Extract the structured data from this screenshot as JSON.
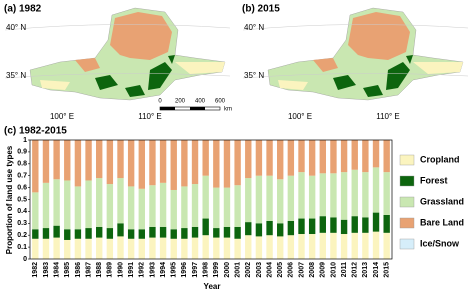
{
  "maps": [
    {
      "title": "(a) 1982",
      "lat_labels": [
        "40° N",
        "35° N"
      ],
      "lon_labels": [
        "100° E",
        "110° E"
      ]
    },
    {
      "title": "(b) 2015",
      "lat_labels": [
        "40° N",
        "35° N"
      ],
      "lon_labels": [
        "100° E",
        "110° E"
      ]
    }
  ],
  "scale_bar": {
    "labels": [
      "0",
      "200",
      "400",
      "600"
    ],
    "unit": "km"
  },
  "chart_data": {
    "type": "stacked_bar",
    "title": "(c) 1982-2015",
    "x_label": "Year",
    "y_label": "Proportion of land use types",
    "categories": [
      "1982",
      "1983",
      "1984",
      "1985",
      "1986",
      "1987",
      "1988",
      "1989",
      "1990",
      "1991",
      "1992",
      "1993",
      "1994",
      "1995",
      "1996",
      "1997",
      "1998",
      "1999",
      "2000",
      "2001",
      "2002",
      "2003",
      "2004",
      "2005",
      "2006",
      "2007",
      "2008",
      "2009",
      "2010",
      "2011",
      "2012",
      "2013",
      "2014",
      "2015"
    ],
    "series": [
      {
        "name": "Cropland",
        "color": "#fbf4bf",
        "values": [
          0.17,
          0.17,
          0.18,
          0.16,
          0.17,
          0.17,
          0.18,
          0.17,
          0.19,
          0.17,
          0.17,
          0.18,
          0.18,
          0.17,
          0.17,
          0.18,
          0.2,
          0.18,
          0.18,
          0.17,
          0.2,
          0.19,
          0.2,
          0.19,
          0.2,
          0.21,
          0.21,
          0.22,
          0.22,
          0.21,
          0.22,
          0.22,
          0.23,
          0.22
        ]
      },
      {
        "name": "Forest",
        "color": "#0d650e",
        "values": [
          0.08,
          0.09,
          0.1,
          0.09,
          0.08,
          0.09,
          0.09,
          0.09,
          0.11,
          0.08,
          0.08,
          0.09,
          0.09,
          0.08,
          0.09,
          0.09,
          0.14,
          0.08,
          0.09,
          0.1,
          0.11,
          0.11,
          0.12,
          0.11,
          0.12,
          0.13,
          0.13,
          0.14,
          0.13,
          0.12,
          0.14,
          0.13,
          0.16,
          0.15
        ]
      },
      {
        "name": "Grassland",
        "color": "#c9e7b1",
        "values": [
          0.31,
          0.38,
          0.39,
          0.41,
          0.36,
          0.4,
          0.41,
          0.37,
          0.38,
          0.36,
          0.34,
          0.35,
          0.37,
          0.33,
          0.35,
          0.36,
          0.36,
          0.34,
          0.33,
          0.35,
          0.37,
          0.4,
          0.38,
          0.37,
          0.38,
          0.39,
          0.36,
          0.36,
          0.37,
          0.4,
          0.39,
          0.38,
          0.38,
          0.36
        ]
      },
      {
        "name": "Bare Land",
        "color": "#e8a273",
        "values": [
          0.44,
          0.36,
          0.33,
          0.34,
          0.39,
          0.34,
          0.32,
          0.37,
          0.32,
          0.39,
          0.41,
          0.38,
          0.36,
          0.42,
          0.39,
          0.37,
          0.3,
          0.4,
          0.4,
          0.38,
          0.32,
          0.3,
          0.3,
          0.33,
          0.3,
          0.27,
          0.3,
          0.28,
          0.28,
          0.27,
          0.25,
          0.27,
          0.23,
          0.27
        ]
      },
      {
        "name": "Ice/Snow",
        "color": "#d6eefa",
        "values": [
          0,
          0,
          0,
          0,
          0,
          0,
          0,
          0,
          0,
          0,
          0,
          0,
          0,
          0,
          0,
          0,
          0,
          0,
          0,
          0,
          0,
          0,
          0,
          0,
          0,
          0,
          0,
          0,
          0,
          0,
          0,
          0,
          0,
          0
        ]
      }
    ],
    "ylim": [
      0,
      1
    ],
    "yticks": [
      0,
      0.1,
      0.2,
      0.3,
      0.4,
      0.5,
      0.6,
      0.7,
      0.8,
      0.9,
      1
    ]
  }
}
